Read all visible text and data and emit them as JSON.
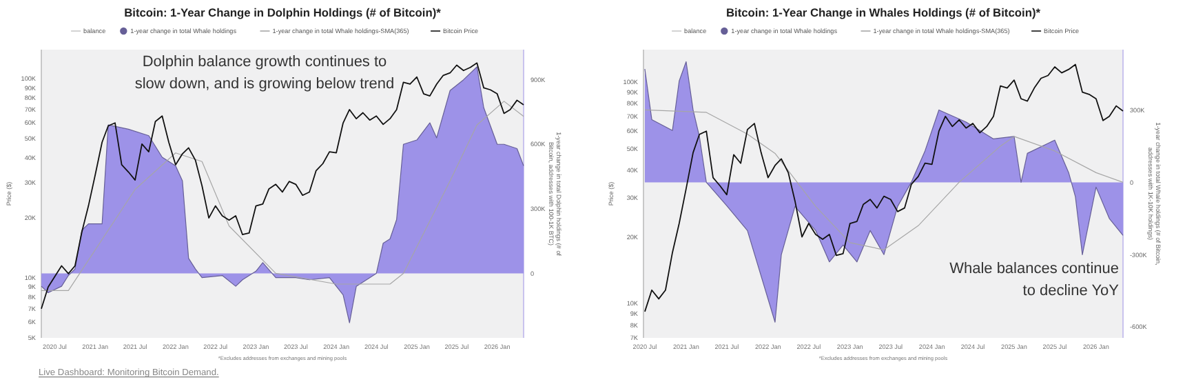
{
  "chart_data": [
    {
      "type": "line",
      "title": "Bitcoin: 1-Year Change in Dolphin Holdings (# of Bitcoin)*",
      "ylabel": "Price ($)",
      "y2label": "1-year change in total Dolphin holdings (# of Bitcoin, addresses with 100-1K BTC)",
      "log": "y",
      "legend": "top",
      "xlim": [
        "2020-05",
        "2026-05"
      ],
      "xticks": [
        {
          "value": "2020-07",
          "label": "2020 Jul"
        },
        {
          "value": "2021-01",
          "label": "2021 Jan"
        },
        {
          "value": "2021-07",
          "label": "2021 Jul"
        },
        {
          "value": "2022-01",
          "label": "2022 Jan"
        },
        {
          "value": "2022-07",
          "label": "2022 Jul"
        },
        {
          "value": "2023-01",
          "label": "2023 Jan"
        },
        {
          "value": "2023-07",
          "label": "2023 Jul"
        },
        {
          "value": "2024-01",
          "label": "2024 Jan"
        },
        {
          "value": "2024-07",
          "label": "2024 Jul"
        },
        {
          "value": "2025-01",
          "label": "2025 Jan"
        },
        {
          "value": "2025-07",
          "label": "2025 Jul"
        },
        {
          "value": "2026-01",
          "label": "2026 Jan"
        }
      ],
      "ylim": [
        5000,
        140000
      ],
      "yticks": [
        {
          "value": 5000,
          "label": "5K"
        },
        {
          "value": 6000,
          "label": "6K"
        },
        {
          "value": 7000,
          "label": "7K"
        },
        {
          "value": 8000,
          "label": "8K"
        },
        {
          "value": 9000,
          "label": "9K"
        },
        {
          "value": 10000,
          "label": "10K"
        },
        {
          "value": 20000,
          "label": "20K"
        },
        {
          "value": 30000,
          "label": "30K"
        },
        {
          "value": 40000,
          "label": "40K"
        },
        {
          "value": 50000,
          "label": "50K"
        },
        {
          "value": 60000,
          "label": "60K"
        },
        {
          "value": 70000,
          "label": "70K"
        },
        {
          "value": 80000,
          "label": "80K"
        },
        {
          "value": 90000,
          "label": "90K"
        },
        {
          "value": 100000,
          "label": "100K"
        }
      ],
      "y2lim": [
        -300000,
        1040000
      ],
      "y2ticks": [
        0,
        {
          "value": 300000,
          "label": "300K"
        },
        {
          "value": 600000,
          "label": "600K"
        },
        {
          "value": 900000,
          "label": "900K"
        }
      ],
      "series": [
        {
          "name": "balance",
          "color": "#c8c8c8"
        },
        {
          "name": "1-year change in total Whale holdings",
          "type": "area",
          "axis": "y2",
          "color": "#9d92e8",
          "x": [
            "2020-05",
            "2020-06",
            "2020-08",
            "2020-09",
            "2020-10",
            "2020-11",
            "2020-12",
            "2021-02",
            "2021-03",
            "2021-06",
            "2021-09",
            "2021-11",
            "2022-01",
            "2022-02",
            "2022-03",
            "2022-04",
            "2022-05",
            "2022-08",
            "2022-10",
            "2022-11",
            "2023-01",
            "2023-02",
            "2023-04",
            "2023-07",
            "2023-09",
            "2023-12",
            "2024-02",
            "2024-03",
            "2024-04",
            "2024-06",
            "2024-07",
            "2024-08",
            "2024-09",
            "2024-10",
            "2024-11",
            "2025-01",
            "2025-03",
            "2025-04",
            "2025-06",
            "2025-08",
            "2025-10",
            "2025-11",
            "2026-01",
            "2026-02",
            "2026-04",
            "2026-05"
          ],
          "values": [
            -60000,
            -90000,
            -60000,
            -10000,
            20000,
            200000,
            230000,
            230000,
            690000,
            670000,
            640000,
            540000,
            500000,
            430000,
            70000,
            20000,
            -20000,
            -10000,
            -60000,
            -30000,
            10000,
            50000,
            -20000,
            -20000,
            -30000,
            -20000,
            -100000,
            -230000,
            -60000,
            -20000,
            0,
            140000,
            160000,
            250000,
            600000,
            620000,
            700000,
            630000,
            850000,
            900000,
            960000,
            770000,
            600000,
            600000,
            580000,
            500000
          ]
        },
        {
          "name": "1-year change in total Whale holdings-SMA(365)",
          "axis": "y2",
          "color": "#a6a6a6",
          "x": [
            "2020-05",
            "2020-09",
            "2021-07",
            "2022-01",
            "2022-05",
            "2022-09",
            "2023-04",
            "2024-01",
            "2024-05",
            "2024-09",
            "2024-11",
            "2025-06",
            "2025-10",
            "2026-02",
            "2026-05"
          ],
          "values": [
            -80000,
            -80000,
            390000,
            560000,
            520000,
            220000,
            0,
            -50000,
            -50000,
            -50000,
            0,
            430000,
            690000,
            800000,
            730000
          ]
        },
        {
          "name": "Bitcoin Price",
          "color": "#111111",
          "x": [
            "2020-05",
            "2020-06",
            "2020-08",
            "2020-09",
            "2020-10",
            "2020-11",
            "2020-12",
            "2021-01",
            "2021-02",
            "2021-03",
            "2021-04",
            "2021-05",
            "2021-06",
            "2021-07",
            "2021-08",
            "2021-09",
            "2021-10",
            "2021-11",
            "2021-12",
            "2022-01",
            "2022-02",
            "2022-03",
            "2022-04",
            "2022-05",
            "2022-06",
            "2022-07",
            "2022-08",
            "2022-09",
            "2022-10",
            "2022-11",
            "2022-12",
            "2023-01",
            "2023-02",
            "2023-03",
            "2023-04",
            "2023-05",
            "2023-06",
            "2023-07",
            "2023-08",
            "2023-09",
            "2023-10",
            "2023-11",
            "2023-12",
            "2024-01",
            "2024-02",
            "2024-03",
            "2024-04",
            "2024-05",
            "2024-06",
            "2024-07",
            "2024-08",
            "2024-09",
            "2024-10",
            "2024-11",
            "2024-12",
            "2025-01",
            "2025-02",
            "2025-03",
            "2025-04",
            "2025-05",
            "2025-06",
            "2025-07",
            "2025-08",
            "2025-09",
            "2025-10",
            "2025-11",
            "2025-12",
            "2026-01",
            "2026-02",
            "2026-03",
            "2026-04",
            "2026-05"
          ],
          "values": [
            7000,
            9000,
            11500,
            10500,
            11500,
            17000,
            23000,
            33000,
            48000,
            58000,
            60000,
            37000,
            34000,
            31000,
            47000,
            43000,
            61000,
            65000,
            48000,
            37000,
            42000,
            45000,
            39000,
            29000,
            20000,
            23000,
            20500,
            19500,
            20500,
            16500,
            16800,
            23000,
            23500,
            28000,
            29500,
            27000,
            30500,
            29500,
            26000,
            27000,
            34500,
            37500,
            43000,
            42500,
            60000,
            70000,
            63000,
            67500,
            62000,
            65000,
            59000,
            63000,
            70000,
            96000,
            94000,
            102000,
            84000,
            82000,
            94000,
            104000,
            107000,
            117000,
            110000,
            114000,
            120000,
            90000,
            88000,
            84000,
            67000,
            70000,
            78000,
            74000
          ]
        }
      ],
      "annotations": [
        "Dolphin balance growth continues to slow down, and is growing below trend",
        "*Excludes addresses from exchanges and mining pools",
        "Live Dashboard: Monitoring Bitcoin Demand."
      ]
    },
    {
      "type": "line",
      "title": "Bitcoin: 1-Year Change in Whales Holdings (# of Bitcoin)*",
      "ylabel": "Price ($)",
      "y2label": "1-year change in total Whale holdings (# of Bitcoin, addresses with 1K-10K holdings)",
      "log": "y",
      "legend": "top",
      "xlim": [
        "2020-06-25",
        "2026-05"
      ],
      "xticks": [
        {
          "value": "2020-07",
          "label": "2020 Jul"
        },
        {
          "value": "2021-01",
          "label": "2021 Jan"
        },
        {
          "value": "2021-07",
          "label": "2021 Jul"
        },
        {
          "value": "2022-01",
          "label": "2022 Jan"
        },
        {
          "value": "2022-07",
          "label": "2022 Jul"
        },
        {
          "value": "2023-01",
          "label": "2023 Jan"
        },
        {
          "value": "2023-07",
          "label": "2023 Jul"
        },
        {
          "value": "2024-01",
          "label": "2024 Jan"
        },
        {
          "value": "2024-07",
          "label": "2024 Jul"
        },
        {
          "value": "2025-01",
          "label": "2025 Jan"
        },
        {
          "value": "2025-07",
          "label": "2025 Jul"
        },
        {
          "value": "2026-01",
          "label": "2026 Jan"
        }
      ],
      "ylim": [
        7000,
        140000
      ],
      "yticks": [
        {
          "value": 7000,
          "label": "7K"
        },
        {
          "value": 8000,
          "label": "8K"
        },
        {
          "value": 9000,
          "label": "9K"
        },
        {
          "value": 10000,
          "label": "10K"
        },
        {
          "value": 20000,
          "label": "20K"
        },
        {
          "value": 30000,
          "label": "30K"
        },
        {
          "value": 40000,
          "label": "40K"
        },
        {
          "value": 50000,
          "label": "50K"
        },
        {
          "value": 60000,
          "label": "60K"
        },
        {
          "value": 70000,
          "label": "70K"
        },
        {
          "value": 80000,
          "label": "80K"
        },
        {
          "value": 90000,
          "label": "90K"
        },
        {
          "value": 100000,
          "label": "100K"
        }
      ],
      "y2lim": [
        -645000,
        550000
      ],
      "y2ticks": [
        {
          "value": -600000,
          "label": "-600K"
        },
        {
          "value": -300000,
          "label": "-300K"
        },
        0,
        {
          "value": 300000,
          "label": "300K"
        }
      ],
      "series": [
        {
          "name": "balance",
          "color": "#c8c8c8"
        },
        {
          "name": "1-year change in total Whale holdings",
          "type": "area",
          "axis": "y2",
          "color": "#9d92e8",
          "x": [
            "2020-07",
            "2020-08",
            "2020-11",
            "2020-12",
            "2021-01",
            "2021-02",
            "2021-03",
            "2021-04",
            "2021-07",
            "2021-10",
            "2022-02",
            "2022-03",
            "2022-05",
            "2022-08",
            "2022-10",
            "2022-12",
            "2023-02",
            "2023-04",
            "2023-06",
            "2023-08",
            "2023-10",
            "2023-12",
            "2024-02",
            "2024-06",
            "2024-10",
            "2025-01",
            "2025-02",
            "2025-03",
            "2025-07",
            "2025-09",
            "2025-10",
            "2025-11",
            "2026-01",
            "2026-03",
            "2026-05"
          ],
          "values": [
            470000,
            260000,
            215000,
            420000,
            500000,
            300000,
            190000,
            0,
            -97000,
            -200000,
            -580000,
            -300000,
            -100000,
            -200000,
            -330000,
            -260000,
            -330000,
            -200000,
            -300000,
            -100000,
            0,
            130000,
            300000,
            250000,
            180000,
            190000,
            0,
            120000,
            175000,
            40000,
            -60000,
            -300000,
            -20000,
            -150000,
            -220000
          ]
        },
        {
          "name": "1-year change in total Whale holdings-SMA(365)",
          "axis": "y2",
          "color": "#a6a6a6",
          "x": [
            "2020-07",
            "2021-04",
            "2021-10",
            "2022-02",
            "2022-08",
            "2023-01",
            "2023-06",
            "2023-11",
            "2024-05",
            "2024-11",
            "2025-01",
            "2025-07",
            "2026-01",
            "2026-05"
          ],
          "values": [
            300000,
            290000,
            200000,
            120000,
            -100000,
            -250000,
            -280000,
            -180000,
            0,
            150000,
            190000,
            130000,
            40000,
            0
          ]
        },
        {
          "name": "Bitcoin Price",
          "color": "#111111",
          "x": [
            "2020-07",
            "2020-08",
            "2020-09",
            "2020-10",
            "2020-11",
            "2020-12",
            "2021-01",
            "2021-02",
            "2021-03",
            "2021-04",
            "2021-05",
            "2021-06",
            "2021-07",
            "2021-08",
            "2021-09",
            "2021-10",
            "2021-11",
            "2021-12",
            "2022-01",
            "2022-02",
            "2022-03",
            "2022-04",
            "2022-05",
            "2022-06",
            "2022-07",
            "2022-08",
            "2022-09",
            "2022-10",
            "2022-11",
            "2022-12",
            "2023-01",
            "2023-02",
            "2023-03",
            "2023-04",
            "2023-05",
            "2023-06",
            "2023-07",
            "2023-08",
            "2023-09",
            "2023-10",
            "2023-11",
            "2023-12",
            "2024-01",
            "2024-02",
            "2024-03",
            "2024-04",
            "2024-05",
            "2024-06",
            "2024-07",
            "2024-08",
            "2024-09",
            "2024-10",
            "2024-11",
            "2024-12",
            "2025-01",
            "2025-02",
            "2025-03",
            "2025-04",
            "2025-05",
            "2025-06",
            "2025-07",
            "2025-08",
            "2025-09",
            "2025-10",
            "2025-11",
            "2025-12",
            "2026-01",
            "2026-02",
            "2026-03",
            "2026-04",
            "2026-05"
          ],
          "values": [
            9200,
            11500,
            10500,
            11500,
            17000,
            23000,
            33000,
            48000,
            58000,
            60000,
            37000,
            34000,
            31000,
            47000,
            43000,
            61000,
            65000,
            48000,
            37000,
            42000,
            45000,
            39000,
            29000,
            20000,
            23000,
            20500,
            19500,
            20500,
            16500,
            16800,
            23000,
            23500,
            28000,
            29500,
            27000,
            30500,
            29500,
            26000,
            27000,
            34500,
            37500,
            43000,
            42500,
            60000,
            70000,
            63000,
            67500,
            62000,
            65000,
            59000,
            63000,
            70000,
            96000,
            94000,
            102000,
            84000,
            82000,
            94000,
            104000,
            107000,
            117000,
            110000,
            114000,
            120000,
            90000,
            88000,
            84000,
            67000,
            70000,
            78000,
            74000
          ]
        }
      ],
      "annotations": [
        "Whale balances continue to decline YoY",
        "*Excludes addresses from exchanges and mining pools"
      ]
    }
  ]
}
